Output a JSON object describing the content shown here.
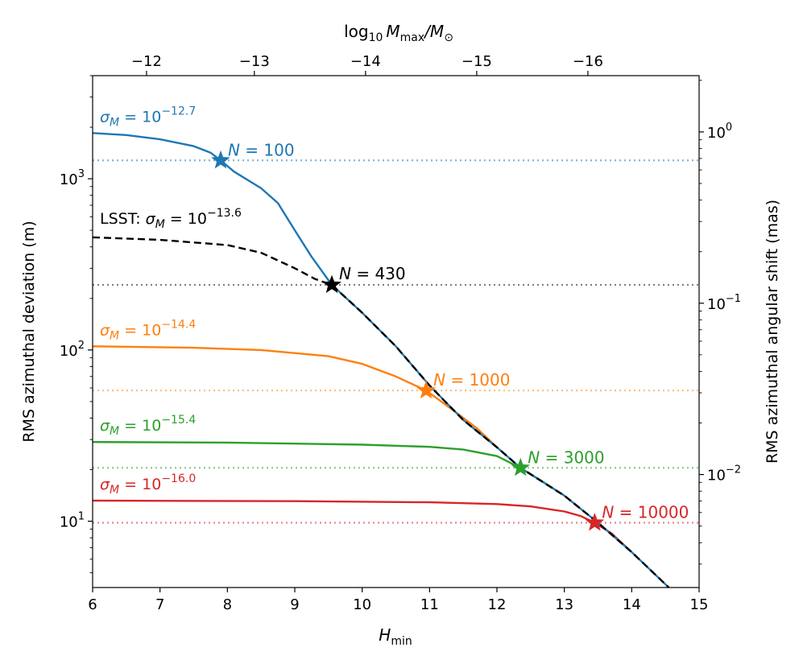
{
  "chart_data": {
    "type": "line",
    "xlabel": "H",
    "xlabel_sub": "min",
    "ylabel_left": "RMS azimuthal deviation (m)",
    "ylabel_right": "RMS azimuthal angular shift (mas)",
    "xlabel_top": "log",
    "xlabel_top_sub": "10",
    "xlabel_top_tail": "M",
    "xlabel_top_tail_sub": "max",
    "xlabel_top_end": "/M",
    "xlabel_top_end_sub": "⊙",
    "xlim": [
      6,
      15
    ],
    "ylim_left": [
      4.1,
      4000
    ],
    "ylim_right": [
      0.00219,
      2.13
    ],
    "x_ticks": [
      "6",
      "7",
      "8",
      "9",
      "10",
      "11",
      "12",
      "13",
      "14",
      "15"
    ],
    "x_tick_values": [
      6,
      7,
      8,
      9,
      10,
      11,
      12,
      13,
      14,
      15
    ],
    "top_ticks": [
      {
        "label": "−12",
        "x": 6.8
      },
      {
        "label": "−13",
        "x": 8.4
      },
      {
        "label": "−14",
        "x": 10.05
      },
      {
        "label": "−15",
        "x": 11.7
      },
      {
        "label": "−16",
        "x": 13.35
      }
    ],
    "y_left_ticks": [
      {
        "value": 10,
        "base": "10",
        "exp": "1"
      },
      {
        "value": 100,
        "base": "10",
        "exp": "2"
      },
      {
        "value": 1000,
        "base": "10",
        "exp": "3"
      }
    ],
    "y_right_ticks": [
      {
        "value": 0.01,
        "base": "10",
        "exp": "−2"
      },
      {
        "value": 0.1,
        "base": "10",
        "exp": "−1"
      },
      {
        "value": 1,
        "base": "10",
        "exp": "0"
      }
    ],
    "lsst_curve": {
      "name": "LSST",
      "color": "#000000",
      "dash": true,
      "points": [
        [
          6,
          455
        ],
        [
          7,
          440
        ],
        [
          8,
          410
        ],
        [
          8.5,
          370
        ],
        [
          9,
          300
        ],
        [
          9.3,
          260
        ],
        [
          9.55,
          240
        ],
        [
          10,
          165
        ],
        [
          10.5,
          105
        ],
        [
          11,
          62
        ],
        [
          11.5,
          39
        ],
        [
          12,
          27
        ],
        [
          12.35,
          20.5
        ],
        [
          13,
          14.1
        ],
        [
          13.5,
          9.8
        ],
        [
          14,
          6.6
        ],
        [
          14.55,
          4.1
        ]
      ]
    },
    "series": [
      {
        "name": "sigma_12.7",
        "color": "#1f77b4",
        "label_base": "σ",
        "label_sub": "M",
        "label_eq": " = 10",
        "label_exp": "−12.7",
        "star_label": "N = 100",
        "star": [
          7.9,
          1280
        ],
        "hline": 1280,
        "points": [
          [
            6,
            1850
          ],
          [
            6.5,
            1800
          ],
          [
            7,
            1700
          ],
          [
            7.5,
            1550
          ],
          [
            7.75,
            1420
          ],
          [
            7.9,
            1280
          ],
          [
            8.1,
            1100
          ],
          [
            8.5,
            880
          ],
          [
            8.75,
            720
          ],
          [
            9,
            500
          ],
          [
            9.25,
            350
          ],
          [
            9.55,
            240
          ]
        ]
      },
      {
        "name": "sigma_14.4",
        "color": "#ff7f0e",
        "label_base": "σ",
        "label_sub": "M",
        "label_eq": " = 10",
        "label_exp": "−14.4",
        "star_label": "N = 1000",
        "star": [
          10.95,
          58
        ],
        "hline": 58,
        "points": [
          [
            6,
            105
          ],
          [
            7.5,
            103
          ],
          [
            8.5,
            100
          ],
          [
            9.5,
            92
          ],
          [
            10,
            83
          ],
          [
            10.5,
            70
          ],
          [
            10.95,
            58
          ],
          [
            11.4,
            43
          ],
          [
            11.7,
            35
          ],
          [
            12,
            27
          ]
        ]
      },
      {
        "name": "sigma_15.4",
        "color": "#2ca02c",
        "label_base": "σ",
        "label_sub": "M",
        "label_eq": " = 10",
        "label_exp": "−15.4",
        "star_label": "N = 3000",
        "star": [
          12.35,
          20.5
        ],
        "hline": 20.5,
        "points": [
          [
            6,
            29
          ],
          [
            8,
            28.8
          ],
          [
            10,
            28
          ],
          [
            11,
            27.2
          ],
          [
            11.5,
            26.2
          ],
          [
            12,
            24
          ],
          [
            12.35,
            20.5
          ],
          [
            12.7,
            16.8
          ],
          [
            13,
            14.1
          ]
        ]
      },
      {
        "name": "sigma_16.0",
        "color": "#d62728",
        "label_base": "σ",
        "label_sub": "M",
        "label_eq": " = 10",
        "label_exp": "−16.0",
        "star_label": "N = 10000",
        "star": [
          13.45,
          9.8
        ],
        "hline": 9.8,
        "points": [
          [
            6,
            13.2
          ],
          [
            9,
            13.1
          ],
          [
            11,
            12.9
          ],
          [
            12,
            12.6
          ],
          [
            12.5,
            12.2
          ],
          [
            13,
            11.4
          ],
          [
            13.25,
            10.7
          ],
          [
            13.45,
            9.8
          ],
          [
            13.7,
            8.5
          ],
          [
            14,
            6.6
          ]
        ]
      }
    ],
    "lsst_label": {
      "prefix": "LSST: ",
      "base": "σ",
      "sub": "M",
      "eq": " = 10",
      "exp": "−13.6",
      "star_label": "N = 430",
      "star": [
        9.55,
        240
      ],
      "hline": 240
    }
  }
}
